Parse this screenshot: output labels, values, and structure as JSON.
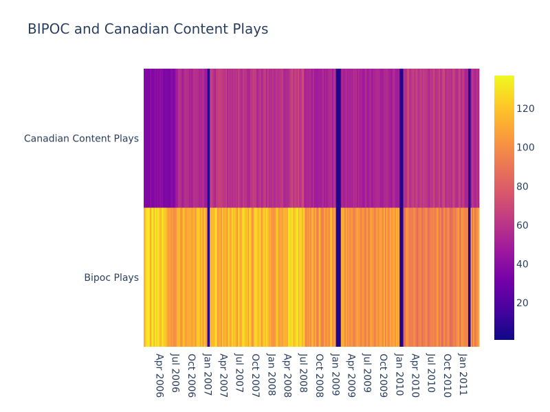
{
  "chart_data": {
    "type": "heatmap",
    "title": "BIPOC and Canadian Content Plays",
    "xlabel": "",
    "ylabel": "",
    "rows": [
      "Bipoc Plays",
      "Canadian Content Plays"
    ],
    "x_start": "2006-01-02",
    "x_end": "2011-03-28",
    "x_step": "week",
    "x_tick_labels": [
      "Apr 2006",
      "Jul 2006",
      "Oct 2006",
      "Jan 2007",
      "Apr 2007",
      "Jul 2007",
      "Oct 2007",
      "Jan 2008",
      "Apr 2008",
      "Jul 2008",
      "Oct 2008",
      "Jan 2009",
      "Apr 2009",
      "Jul 2009",
      "Oct 2009",
      "Jan 2010",
      "Apr 2010",
      "Jul 2010",
      "Oct 2010",
      "Jan 2011"
    ],
    "x_tick_dates": [
      "2006-04-01",
      "2006-07-01",
      "2006-10-01",
      "2007-01-01",
      "2007-04-01",
      "2007-07-01",
      "2007-10-01",
      "2008-01-01",
      "2008-04-01",
      "2008-07-01",
      "2008-10-01",
      "2009-01-01",
      "2009-04-01",
      "2009-07-01",
      "2009-10-01",
      "2010-01-01",
      "2010-04-01",
      "2010-07-01",
      "2010-10-01",
      "2011-01-01"
    ],
    "z_range": [
      1,
      137
    ],
    "colorbar_ticks": [
      20,
      40,
      60,
      80,
      100,
      120
    ],
    "colorscale": "plasma",
    "colors": [
      "#0d0887",
      "#46039f",
      "#7201a8",
      "#9c179e",
      "#bd3786",
      "#d8576b",
      "#ed7953",
      "#fb9f3a",
      "#fdca26",
      "#f0f921"
    ],
    "series": [
      {
        "name": "Bipoc Plays",
        "values_by_period": [
          {
            "from": "2006-01-02",
            "to": "2006-04-24",
            "value": 121
          },
          {
            "from": "2006-05-01",
            "to": "2006-12-25",
            "value": 110
          },
          {
            "from": "2007-01-01",
            "to": "2007-01-08",
            "value": 8
          },
          {
            "from": "2007-01-15",
            "to": "2008-03-31",
            "value": 115
          },
          {
            "from": "2008-04-07",
            "to": "2008-06-30",
            "value": 122
          },
          {
            "from": "2008-07-07",
            "to": "2008-12-29",
            "value": 106
          },
          {
            "from": "2009-01-05",
            "to": "2009-01-26",
            "value": 6
          },
          {
            "from": "2009-02-02",
            "to": "2009-12-28",
            "value": 104
          },
          {
            "from": "2010-01-04",
            "to": "2010-01-18",
            "value": 6
          },
          {
            "from": "2010-01-25",
            "to": "2010-12-27",
            "value": 94
          },
          {
            "from": "2011-01-03",
            "to": "2011-01-24",
            "value": 106
          },
          {
            "from": "2011-01-31",
            "to": "2011-02-07",
            "value": 6
          },
          {
            "from": "2011-02-14",
            "to": "2011-03-28",
            "value": 100
          }
        ]
      },
      {
        "name": "Canadian Content Plays",
        "values_by_period": [
          {
            "from": "2006-01-02",
            "to": "2006-06-26",
            "value": 38
          },
          {
            "from": "2006-07-03",
            "to": "2006-12-25",
            "value": 54
          },
          {
            "from": "2007-01-01",
            "to": "2007-01-08",
            "value": 8
          },
          {
            "from": "2007-01-15",
            "to": "2008-03-31",
            "value": 60
          },
          {
            "from": "2008-04-07",
            "to": "2008-06-30",
            "value": 64
          },
          {
            "from": "2008-07-07",
            "to": "2008-12-29",
            "value": 54
          },
          {
            "from": "2009-01-05",
            "to": "2009-01-26",
            "value": 6
          },
          {
            "from": "2009-02-02",
            "to": "2009-12-28",
            "value": 52
          },
          {
            "from": "2010-01-04",
            "to": "2010-01-18",
            "value": 6
          },
          {
            "from": "2010-01-25",
            "to": "2010-12-27",
            "value": 62
          },
          {
            "from": "2011-01-03",
            "to": "2011-01-24",
            "value": 58
          },
          {
            "from": "2011-01-31",
            "to": "2011-02-07",
            "value": 6
          },
          {
            "from": "2011-02-14",
            "to": "2011-03-28",
            "value": 58
          }
        ]
      }
    ],
    "legend": "colorbar-right"
  }
}
